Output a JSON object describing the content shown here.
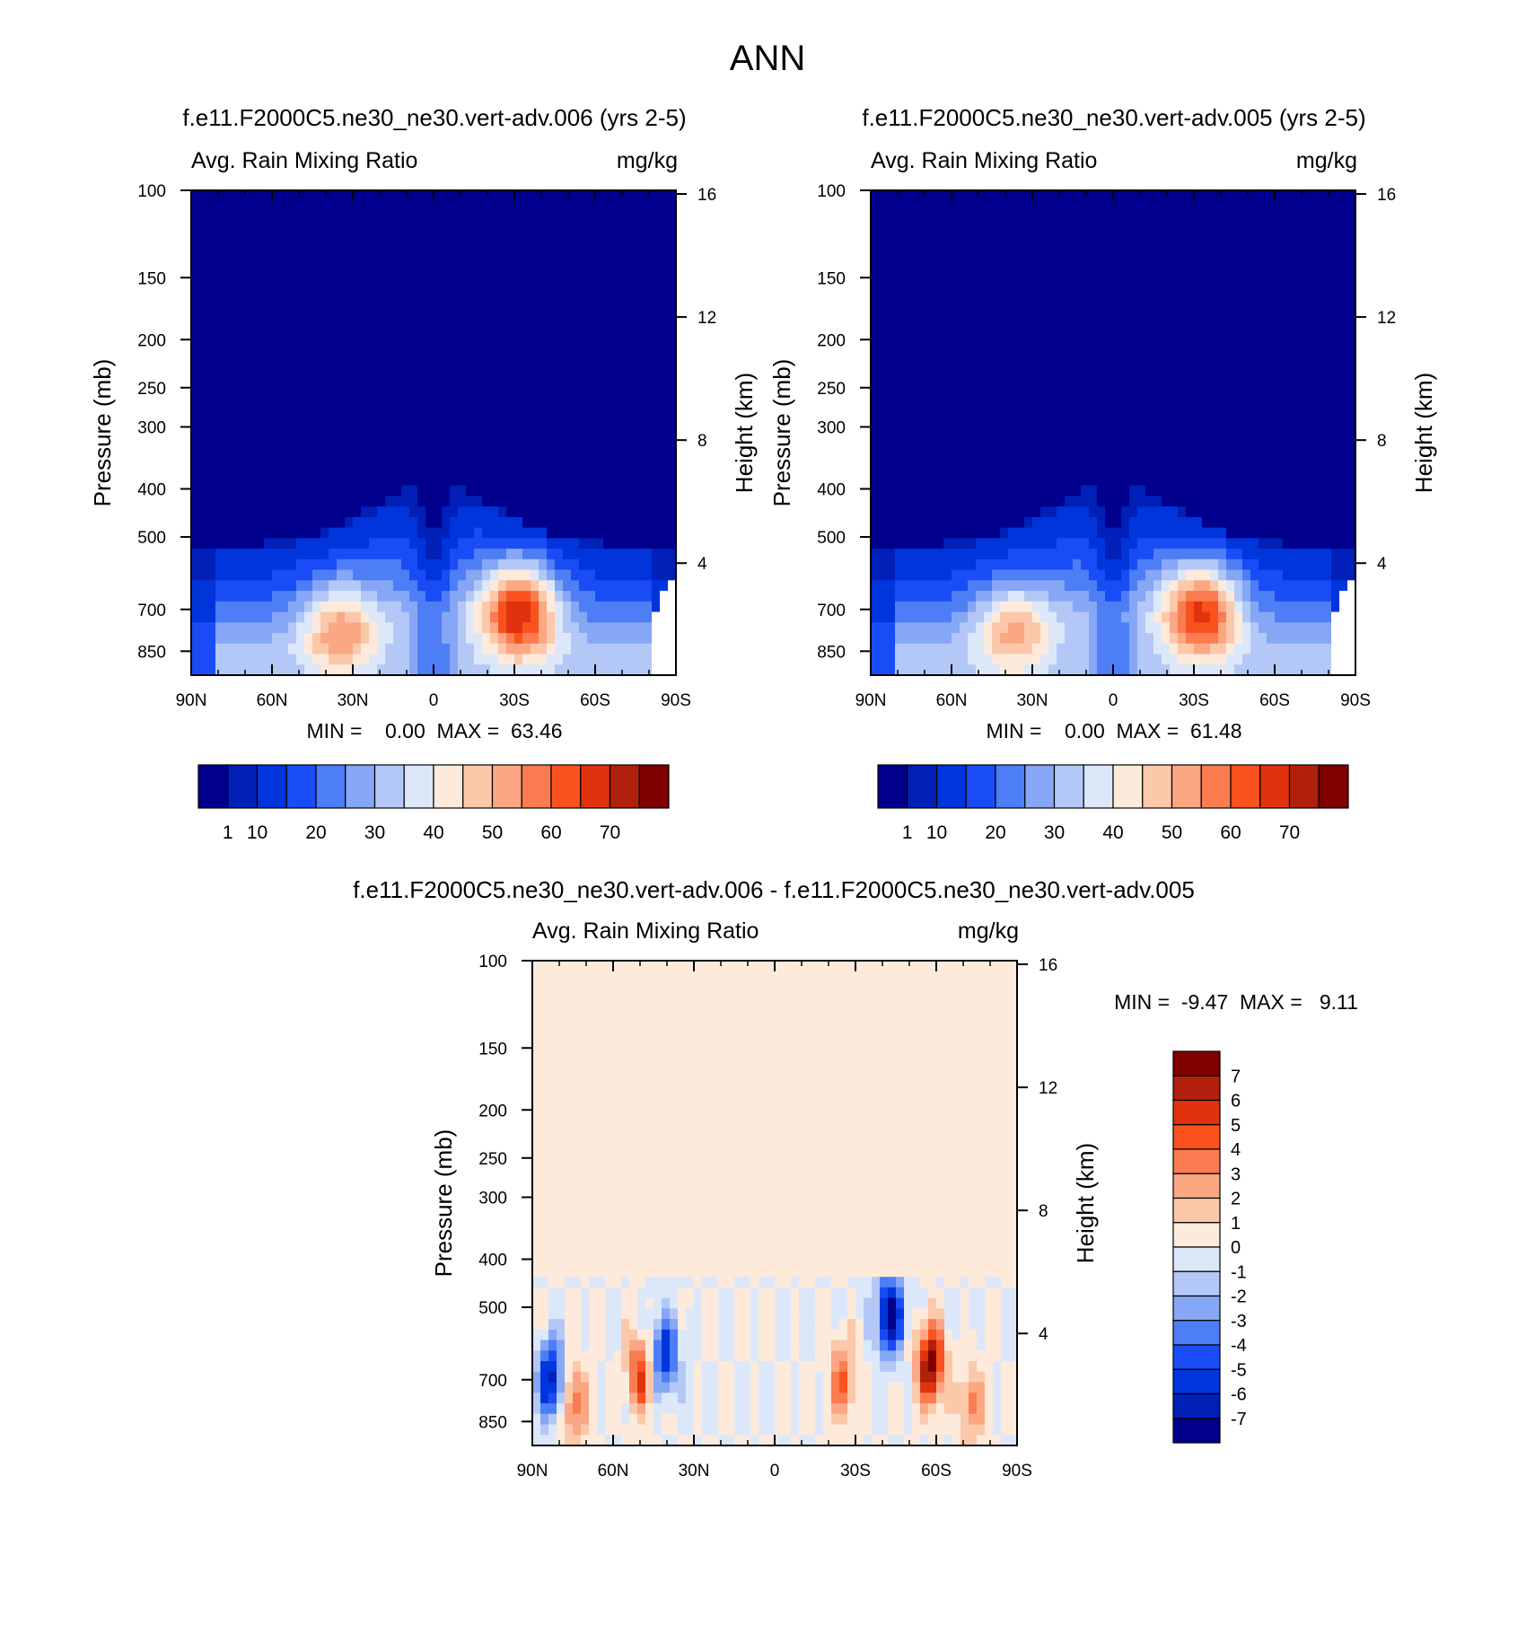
{
  "page": {
    "title": "ANN"
  },
  "chart_data": [
    {
      "type": "heatmap",
      "title": "f.e11.F2000C5.ne30_ne30.vert-adv.006 (yrs 2-5)",
      "left_label": "Avg. Rain Mixing Ratio",
      "right_label": "mg/kg",
      "xlabel": "",
      "ylabel": "Pressure (mb)",
      "y2label": "Height (km)",
      "x_ticks": [
        "90N",
        "60N",
        "30N",
        "0",
        "30S",
        "60S",
        "90S"
      ],
      "y_ticks": [
        "100",
        "150",
        "200",
        "250",
        "300",
        "400",
        "500",
        "700",
        "850"
      ],
      "y2_ticks": [
        "16",
        "12",
        "8",
        "4"
      ],
      "xlim": [
        90,
        -90
      ],
      "ylim": [
        100,
        950
      ],
      "log_y": true,
      "stats": "MIN =    0.00  MAX =  63.46",
      "min": 0.0,
      "max": 63.46,
      "colorbar": {
        "orientation": "horizontal",
        "labels": [
          "1",
          "10",
          "20",
          "30",
          "40",
          "50",
          "60",
          "70"
        ],
        "colors": [
          "#00008c",
          "#0020b8",
          "#0035dc",
          "#1a4cf5",
          "#4d7ef5",
          "#86a6f6",
          "#b3c8f7",
          "#dce8fa",
          "#fdeadb",
          "#fcc8aa",
          "#fba784",
          "#fa7c50",
          "#f9521f",
          "#e0330d",
          "#b0200d",
          "#800000"
        ]
      },
      "features": [
        {
          "lat": 35,
          "p": 760,
          "v": 45
        },
        {
          "lat": -32,
          "p": 700,
          "v": 63
        }
      ]
    },
    {
      "type": "heatmap",
      "title": "f.e11.F2000C5.ne30_ne30.vert-adv.005 (yrs 2-5)",
      "left_label": "Avg. Rain Mixing Ratio",
      "right_label": "mg/kg",
      "xlabel": "",
      "ylabel": "Pressure (mb)",
      "y2label": "Height (km)",
      "x_ticks": [
        "90N",
        "60N",
        "30N",
        "0",
        "30S",
        "60S",
        "90S"
      ],
      "y_ticks": [
        "100",
        "150",
        "200",
        "250",
        "300",
        "400",
        "500",
        "700",
        "850"
      ],
      "y2_ticks": [
        "16",
        "12",
        "8",
        "4"
      ],
      "xlim": [
        90,
        -90
      ],
      "ylim": [
        100,
        950
      ],
      "log_y": true,
      "stats": "MIN =    0.00  MAX =  61.48",
      "min": 0.0,
      "max": 61.48,
      "colorbar": {
        "orientation": "horizontal",
        "labels": [
          "1",
          "10",
          "20",
          "30",
          "40",
          "50",
          "60",
          "70"
        ],
        "colors": [
          "#00008c",
          "#0020b8",
          "#0035dc",
          "#1a4cf5",
          "#4d7ef5",
          "#86a6f6",
          "#b3c8f7",
          "#dce8fa",
          "#fdeadb",
          "#fcc8aa",
          "#fba784",
          "#fa7c50",
          "#f9521f",
          "#e0330d",
          "#b0200d",
          "#800000"
        ]
      },
      "features": [
        {
          "lat": 37,
          "p": 760,
          "v": 42
        },
        {
          "lat": -33,
          "p": 700,
          "v": 61
        }
      ]
    },
    {
      "type": "heatmap",
      "title": "f.e11.F2000C5.ne30_ne30.vert-adv.006 - f.e11.F2000C5.ne30_ne30.vert-adv.005",
      "left_label": "Avg. Rain Mixing Ratio",
      "right_label": "mg/kg",
      "xlabel": "",
      "ylabel": "Pressure (mb)",
      "y2label": "Height (km)",
      "x_ticks": [
        "90N",
        "60N",
        "30N",
        "0",
        "30S",
        "60S",
        "90S"
      ],
      "y_ticks": [
        "100",
        "150",
        "200",
        "250",
        "300",
        "400",
        "500",
        "700",
        "850"
      ],
      "y2_ticks": [
        "16",
        "12",
        "8",
        "4"
      ],
      "xlim": [
        90,
        -90
      ],
      "ylim": [
        100,
        950
      ],
      "log_y": true,
      "stats": "MIN =  -9.47  MAX =   9.11",
      "min": -9.47,
      "max": 9.11,
      "colorbar": {
        "orientation": "vertical",
        "labels": [
          "7",
          "6",
          "5",
          "4",
          "3",
          "2",
          "1",
          "0",
          "-1",
          "-2",
          "-3",
          "-4",
          "-5",
          "-6",
          "-7"
        ],
        "colors": [
          "#800000",
          "#b0200d",
          "#e0330d",
          "#f9521f",
          "#fa7c50",
          "#fba784",
          "#fcc8aa",
          "#fdeadb",
          "#dce8fa",
          "#b3c8f7",
          "#86a6f6",
          "#4d7ef5",
          "#1a4cf5",
          "#0035dc",
          "#0020b8",
          "#00008c"
        ]
      },
      "features": [
        {
          "lat": 83,
          "p": 700,
          "v": -7
        },
        {
          "lat": 41,
          "p": 620,
          "v": -6
        },
        {
          "lat": -43,
          "p": 520,
          "v": -8
        },
        {
          "lat": -58,
          "p": 650,
          "v": 8
        },
        {
          "lat": 50,
          "p": 680,
          "v": 5
        },
        {
          "lat": -25,
          "p": 700,
          "v": 4
        },
        {
          "lat": 75,
          "p": 780,
          "v": 4
        },
        {
          "lat": -73,
          "p": 780,
          "v": 3
        }
      ]
    }
  ]
}
